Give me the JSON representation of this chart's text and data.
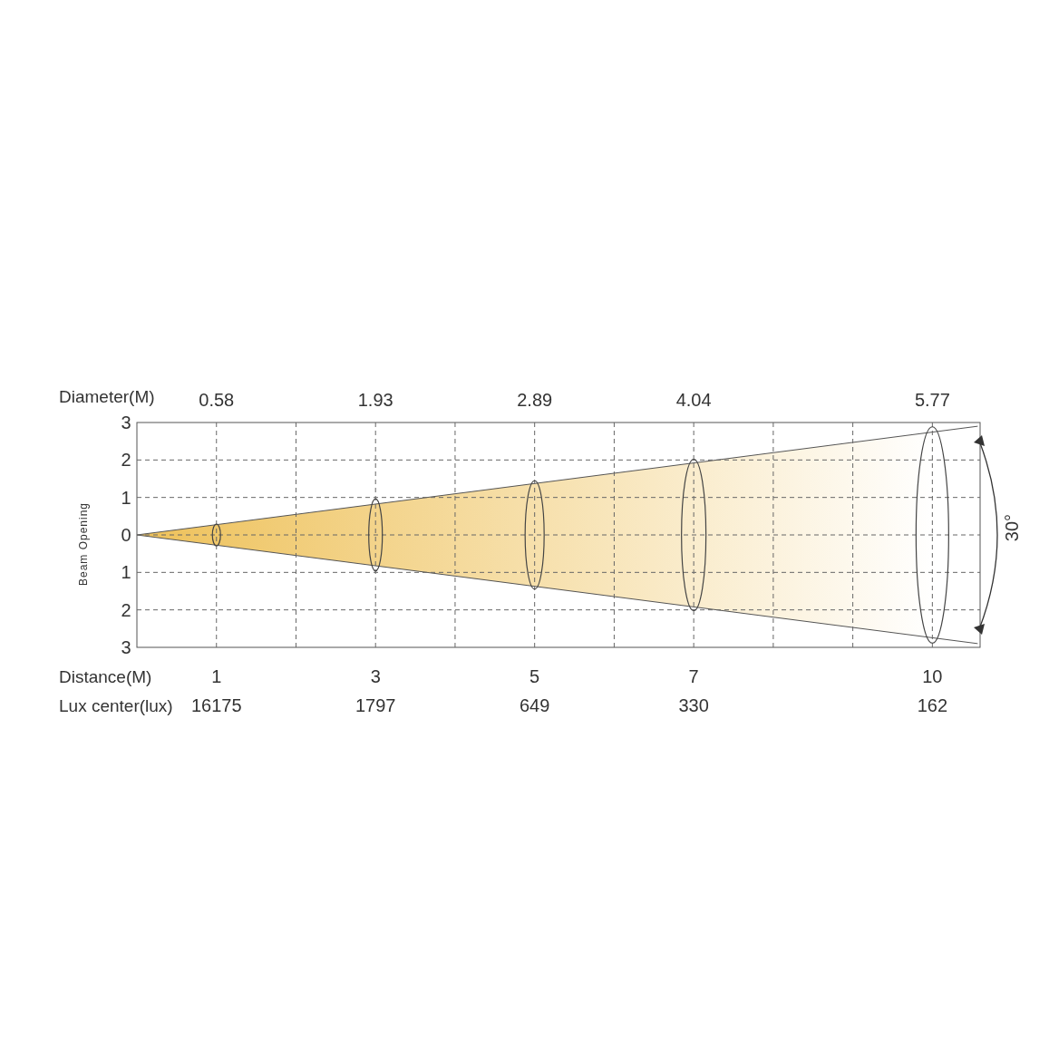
{
  "chart_data": {
    "type": "bar",
    "xlabel": "Distance(M)",
    "ylabel": "Beam Opening",
    "xlim": [
      0,
      10.6
    ],
    "xticks": [
      {
        "value": 1,
        "label": "1"
      },
      {
        "value": 2,
        "label": null
      },
      {
        "value": 3,
        "label": "3"
      },
      {
        "value": 4,
        "label": null
      },
      {
        "value": 5,
        "label": "5"
      },
      {
        "value": 6,
        "label": null
      },
      {
        "value": 7,
        "label": "7"
      },
      {
        "value": 8,
        "label": null
      },
      {
        "value": 9,
        "label": null
      },
      {
        "value": 10,
        "label": "10"
      }
    ],
    "ylim": [
      -3,
      3
    ],
    "yticks": [
      {
        "value": 3,
        "label": "3"
      },
      {
        "value": 2,
        "label": "2"
      },
      {
        "value": 1,
        "label": "1"
      },
      {
        "value": 0,
        "label": "0"
      },
      {
        "value": -1,
        "label": "1"
      },
      {
        "value": -2,
        "label": "2"
      },
      {
        "value": -3,
        "label": "3"
      }
    ],
    "grid": true,
    "series": [
      {
        "color": "#444444",
        "x": [
          1,
          3,
          5,
          7,
          10
        ],
        "values": [
          0.58,
          1.93,
          2.89,
          4.04,
          5.77
        ],
        "base": [
          -0.29,
          -0.965,
          -1.445,
          -2.02,
          -2.885
        ]
      },
      {
        "type": "line",
        "color": "#555555",
        "x": [
          0,
          10.57
        ],
        "values": [
          0,
          2.9
        ],
        "lower": [
          0,
          -2.9
        ],
        "upper": [
          0,
          2.9
        ]
      },
      {
        "type": "line",
        "color": "#555555",
        "x": [
          0,
          10.57
        ],
        "values": [
          0,
          -2.9
        ]
      }
    ],
    "annotations": [
      "Diameter(M)",
      "0.58",
      "1.93",
      "2.89",
      "4.04",
      "5.77",
      "Lux center(lux)",
      "16175",
      "1797",
      "649",
      "330",
      "162",
      "30°"
    ]
  }
}
